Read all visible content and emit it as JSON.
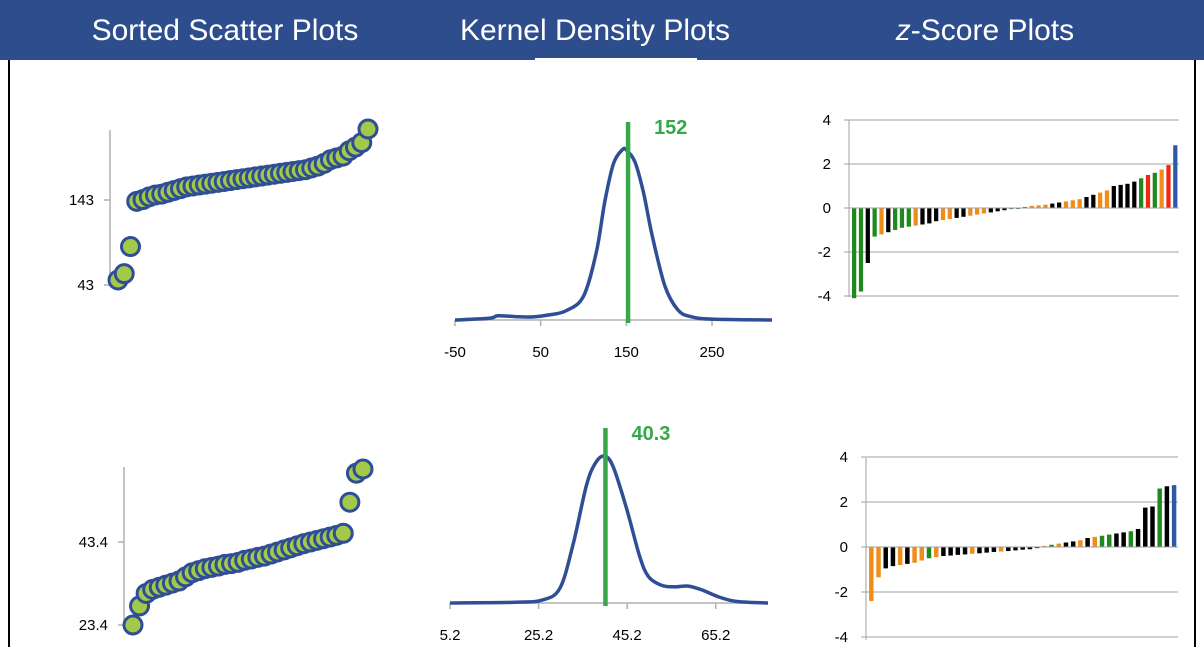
{
  "header": {
    "bg_color": "#2d4d8d",
    "text_color": "#ffffff",
    "titles": [
      {
        "prefix": "",
        "text": "Sorted Scatter Plots"
      },
      {
        "prefix": "",
        "text": "Kernel Density Plots"
      },
      {
        "prefix": "z",
        "text": "-Score Plots"
      }
    ]
  },
  "colors": {
    "line": "#2f4e96",
    "marker_fill": "#a3c94a",
    "marker_edge": "#2f4e96",
    "vline": "#36a84a",
    "bar_green": "#1e8a1e",
    "bar_black": "#000000",
    "bar_orange": "#f08c1a",
    "bar_red": "#f0280f",
    "bar_blue": "#2f58a8",
    "grid": "#a0a0a0"
  },
  "chart_data": [
    {
      "type": "scatter",
      "id": "sorted-scatter-1",
      "title": "",
      "y_ticks": [
        "143",
        "43"
      ],
      "ylim": [
        10,
        220
      ],
      "values": [
        43,
        50,
        80,
        130,
        132,
        135,
        137,
        138,
        140,
        142,
        144,
        146,
        147,
        148,
        149,
        150,
        151,
        152,
        153,
        154,
        155,
        156,
        157,
        158,
        159,
        160,
        161,
        162,
        163,
        164,
        165,
        167,
        169,
        172,
        176,
        178,
        180,
        186,
        190,
        195,
        210
      ]
    },
    {
      "type": "line",
      "id": "kernel-density-1",
      "x_ticks": [
        "-50",
        "50",
        "150",
        "250"
      ],
      "x_tick_values": [
        -50,
        50,
        150,
        250
      ],
      "xlim": [
        -50,
        320
      ],
      "marker_value": 152,
      "marker_label": "152",
      "density": [
        [
          -50,
          0.0
        ],
        [
          -10,
          0.01
        ],
        [
          0,
          0.025
        ],
        [
          20,
          0.02
        ],
        [
          40,
          0.018
        ],
        [
          60,
          0.03
        ],
        [
          80,
          0.055
        ],
        [
          100,
          0.14
        ],
        [
          115,
          0.4
        ],
        [
          125,
          0.7
        ],
        [
          135,
          0.92
        ],
        [
          145,
          1.0
        ],
        [
          150,
          1.0
        ],
        [
          160,
          0.93
        ],
        [
          170,
          0.75
        ],
        [
          180,
          0.5
        ],
        [
          195,
          0.2
        ],
        [
          210,
          0.06
        ],
        [
          225,
          0.02
        ],
        [
          250,
          0.005
        ],
        [
          320,
          0.0
        ]
      ]
    },
    {
      "type": "bar",
      "id": "z-score-1",
      "y_ticks": [
        "4",
        "2",
        "0",
        "-2",
        "-4"
      ],
      "ylim": [
        -4,
        4
      ],
      "values": [
        -4.1,
        -3.8,
        -2.5,
        -1.3,
        -1.2,
        -1.1,
        -1.0,
        -0.9,
        -0.85,
        -0.8,
        -0.75,
        -0.7,
        -0.6,
        -0.55,
        -0.5,
        -0.45,
        -0.4,
        -0.35,
        -0.3,
        -0.25,
        -0.2,
        -0.15,
        -0.1,
        -0.05,
        0.0,
        0.05,
        0.1,
        0.12,
        0.15,
        0.2,
        0.25,
        0.3,
        0.35,
        0.4,
        0.5,
        0.6,
        0.7,
        0.8,
        1.0,
        1.05,
        1.1,
        1.2,
        1.35,
        1.5,
        1.6,
        1.75,
        1.95,
        2.85
      ],
      "bar_colors": [
        "bar_green",
        "bar_green",
        "bar_black",
        "bar_green",
        "bar_orange",
        "bar_black",
        "bar_green",
        "bar_green",
        "bar_green",
        "bar_orange",
        "bar_black",
        "bar_black",
        "bar_black",
        "bar_orange",
        "bar_orange",
        "bar_black",
        "bar_black",
        "bar_orange",
        "bar_orange",
        "bar_orange",
        "bar_black",
        "bar_black",
        "bar_black",
        "bar_green",
        "bar_black",
        "bar_green",
        "bar_orange",
        "bar_orange",
        "bar_orange",
        "bar_black",
        "bar_black",
        "bar_orange",
        "bar_orange",
        "bar_orange",
        "bar_black",
        "bar_black",
        "bar_orange",
        "bar_orange",
        "bar_black",
        "bar_black",
        "bar_black",
        "bar_black",
        "bar_green",
        "bar_red",
        "bar_green",
        "bar_orange",
        "bar_red",
        "bar_blue"
      ]
    },
    {
      "type": "scatter",
      "id": "sorted-scatter-2",
      "title": "",
      "y_ticks": [
        "43.4",
        "23.4"
      ],
      "ylim": [
        20,
        70
      ],
      "values": [
        23.4,
        28,
        31,
        32,
        32.5,
        33,
        33.5,
        34,
        35,
        36,
        36.5,
        37,
        37.3,
        37.6,
        38,
        38.2,
        38.5,
        39,
        39.3,
        39.7,
        40,
        40.5,
        41,
        41.5,
        42,
        42.5,
        43,
        43.4,
        43.8,
        44.2,
        44.6,
        45,
        45.5,
        53,
        60,
        61
      ]
    },
    {
      "type": "line",
      "id": "kernel-density-2",
      "x_ticks": [
        "5.2",
        "25.2",
        "45.2",
        "65.2"
      ],
      "x_tick_values": [
        5.2,
        25.2,
        45.2,
        65.2
      ],
      "xlim": [
        5.2,
        77
      ],
      "marker_value": 40.3,
      "marker_label": "40.3",
      "density": [
        [
          5.2,
          0.0
        ],
        [
          20,
          0.005
        ],
        [
          26,
          0.02
        ],
        [
          30,
          0.1
        ],
        [
          33,
          0.4
        ],
        [
          36,
          0.8
        ],
        [
          38,
          0.95
        ],
        [
          40,
          1.0
        ],
        [
          42,
          0.93
        ],
        [
          45,
          0.65
        ],
        [
          48,
          0.32
        ],
        [
          50,
          0.18
        ],
        [
          53,
          0.12
        ],
        [
          56,
          0.11
        ],
        [
          59,
          0.115
        ],
        [
          62,
          0.09
        ],
        [
          66,
          0.04
        ],
        [
          70,
          0.01
        ],
        [
          77,
          0.0
        ]
      ]
    },
    {
      "type": "bar",
      "id": "z-score-2",
      "y_ticks": [
        "4",
        "2",
        "0",
        "-2",
        "-4"
      ],
      "ylim": [
        -4,
        4
      ],
      "values": [
        -2.4,
        -1.35,
        -0.95,
        -0.85,
        -0.8,
        -0.75,
        -0.7,
        -0.6,
        -0.5,
        -0.45,
        -0.4,
        -0.38,
        -0.35,
        -0.33,
        -0.3,
        -0.28,
        -0.25,
        -0.22,
        -0.2,
        -0.18,
        -0.15,
        -0.12,
        -0.1,
        -0.05,
        0.05,
        0.1,
        0.15,
        0.2,
        0.25,
        0.3,
        0.4,
        0.45,
        0.5,
        0.55,
        0.6,
        0.65,
        0.7,
        0.8,
        1.75,
        1.8,
        2.6,
        2.7,
        2.75
      ],
      "bar_colors": [
        "bar_orange",
        "bar_orange",
        "bar_black",
        "bar_black",
        "bar_orange",
        "bar_black",
        "bar_orange",
        "bar_orange",
        "bar_green",
        "bar_orange",
        "bar_black",
        "bar_black",
        "bar_black",
        "bar_black",
        "bar_orange",
        "bar_black",
        "bar_black",
        "bar_black",
        "bar_orange",
        "bar_black",
        "bar_black",
        "bar_black",
        "bar_black",
        "bar_black",
        "bar_orange",
        "bar_green",
        "bar_orange",
        "bar_black",
        "bar_black",
        "bar_orange",
        "bar_black",
        "bar_orange",
        "bar_green",
        "bar_green",
        "bar_black",
        "bar_black",
        "bar_green",
        "bar_black",
        "bar_black",
        "bar_black",
        "bar_green",
        "bar_black",
        "bar_blue"
      ]
    }
  ]
}
